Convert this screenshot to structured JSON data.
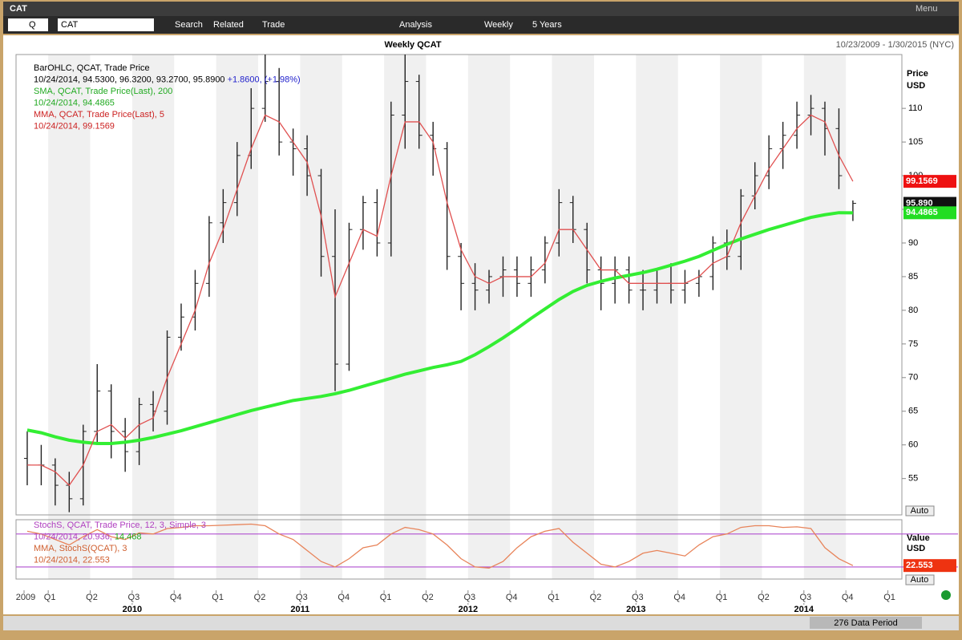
{
  "window_title": "CAT",
  "toolbar": {
    "symbol_type": "Q",
    "symbol": "CAT",
    "search": "Search",
    "related": "Related",
    "trade": "Trade",
    "analysis": "Analysis",
    "interval": "Weekly",
    "range": "5 Years",
    "menu": "Menu"
  },
  "footer": {
    "periods": "276 Data Period",
    "auto": "Auto"
  },
  "chart_data": [
    {
      "type": "ohlc",
      "title": "Weekly QCAT",
      "subtitle": "10/23/2009 - 1/30/2015 (NYC)",
      "axis_label": [
        "Price",
        "USD"
      ],
      "legend": [
        "BarOHLC, QCAT, Trade Price",
        "10/24/2014, 94.5300, 96.3200, 93.2700, 95.8900",
        "+1.8600, (+1.98%)",
        "SMA, QCAT, Trade Price(Last),  200",
        "10/24/2014, 94.4865",
        "MMA, QCAT, Trade Price(Last),  5",
        "10/24/2014, 99.1569"
      ],
      "xlim": [
        -0.8,
        62.5
      ],
      "xticks": [
        {
          "value": -1.5,
          "label": "2009"
        },
        {
          "value": 1.5,
          "label": "Q1"
        },
        {
          "value": 4.5,
          "label": "Q2"
        },
        {
          "value": 7.5,
          "label": "Q3"
        },
        {
          "value": 10.5,
          "label": "Q4"
        },
        {
          "value": 13.5,
          "label": "Q1"
        },
        {
          "value": 16.5,
          "label": "Q2"
        },
        {
          "value": 19.5,
          "label": "Q3"
        },
        {
          "value": 22.5,
          "label": "Q4"
        },
        {
          "value": 25.5,
          "label": "Q1"
        },
        {
          "value": 28.5,
          "label": "Q2"
        },
        {
          "value": 31.5,
          "label": "Q3"
        },
        {
          "value": 34.5,
          "label": "Q4"
        },
        {
          "value": 37.5,
          "label": "Q1"
        },
        {
          "value": 40.5,
          "label": "Q2"
        },
        {
          "value": 43.5,
          "label": "Q3"
        },
        {
          "value": 46.5,
          "label": "Q4"
        },
        {
          "value": 49.5,
          "label": "Q1"
        },
        {
          "value": 52.5,
          "label": "Q2"
        },
        {
          "value": 55.5,
          "label": "Q3"
        },
        {
          "value": 58.5,
          "label": "Q4"
        },
        {
          "value": 61.5,
          "label": "Q1"
        }
      ],
      "year_ticks": [
        {
          "value": 7.5,
          "label": "2010"
        },
        {
          "value": 19.5,
          "label": "2011"
        },
        {
          "value": 31.5,
          "label": "2012"
        },
        {
          "value": 43.5,
          "label": "2013"
        },
        {
          "value": 55.5,
          "label": "2014"
        }
      ],
      "ylim": [
        49.6,
        118
      ],
      "yticks": [
        55,
        60,
        65,
        70,
        75,
        80,
        85,
        90,
        95,
        100,
        105,
        110
      ],
      "open": [
        58,
        57,
        57,
        54,
        52,
        62,
        68,
        62,
        59,
        66,
        65,
        76,
        79,
        84,
        93,
        96,
        103,
        110,
        114,
        105,
        104,
        100,
        88,
        72,
        92,
        96,
        90,
        109,
        114,
        106,
        104,
        88,
        84,
        83,
        85,
        86,
        84,
        86,
        90,
        96,
        92,
        86,
        84,
        86,
        83,
        83,
        84,
        83,
        84,
        85,
        90,
        88,
        97,
        100,
        104,
        106,
        109,
        110,
        107,
        94.53
      ],
      "high": [
        62,
        60,
        58,
        56,
        63,
        72,
        69,
        64,
        67,
        68,
        77,
        81,
        86,
        94,
        98,
        105,
        113,
        118,
        116,
        107,
        106,
        101,
        95,
        93,
        97,
        98,
        111,
        118,
        115,
        108,
        105,
        90,
        87,
        86,
        88,
        88,
        88,
        91,
        98,
        97,
        93,
        88,
        88,
        88,
        86,
        86,
        87,
        86,
        86,
        91,
        92,
        98,
        102,
        106,
        108,
        111,
        112,
        111,
        110,
        96.32
      ],
      "low": [
        54,
        54,
        51,
        50,
        51,
        60,
        58,
        56,
        57,
        62,
        63,
        74,
        77,
        82,
        90,
        94,
        101,
        108,
        103,
        100,
        97,
        85,
        68,
        71,
        89,
        88,
        88,
        104,
        104,
        100,
        86,
        80,
        80,
        81,
        82,
        82,
        82,
        84,
        88,
        90,
        84,
        80,
        81,
        81,
        80,
        81,
        81,
        81,
        82,
        83,
        86,
        86,
        95,
        98,
        101,
        104,
        106,
        103,
        98,
        93.27
      ],
      "close": [
        57,
        57,
        54,
        52,
        62,
        68,
        62,
        59,
        66,
        65,
        76,
        79,
        84,
        93,
        96,
        103,
        110,
        114,
        105,
        104,
        100,
        88,
        72,
        92,
        96,
        90,
        109,
        114,
        106,
        104,
        88,
        84,
        83,
        85,
        86,
        84,
        86,
        90,
        96,
        92,
        86,
        84,
        86,
        83,
        83,
        84,
        83,
        84,
        85,
        90,
        88,
        97,
        100,
        104,
        106,
        109,
        110,
        107,
        100,
        95.89
      ],
      "color": "#222222",
      "series": [
        {
          "name": "SMA",
          "color": "#33ee33",
          "width": 4,
          "values": [
            62.2,
            61.8,
            61.2,
            60.7,
            60.4,
            60.2,
            60.2,
            60.4,
            60.7,
            61.1,
            61.6,
            62.1,
            62.7,
            63.3,
            63.9,
            64.5,
            65.1,
            65.6,
            66.1,
            66.6,
            66.9,
            67.2,
            67.6,
            68.1,
            68.7,
            69.3,
            69.9,
            70.5,
            71,
            71.5,
            71.9,
            72.4,
            73.4,
            74.6,
            75.9,
            77.3,
            78.8,
            80.2,
            81.6,
            82.8,
            83.7,
            84.3,
            84.8,
            85.2,
            85.6,
            86.1,
            86.7,
            87.3,
            88,
            88.9,
            89.8,
            90.6,
            91.3,
            92,
            92.6,
            93.2,
            93.8,
            94.2,
            94.5,
            94.4865
          ]
        },
        {
          "name": "MMA",
          "color": "#e05050",
          "width": 1.3,
          "values": [
            57,
            57,
            56,
            54,
            57,
            62,
            63,
            61,
            63,
            64,
            70,
            75,
            80,
            87,
            92,
            98,
            104,
            109,
            108,
            105,
            102,
            94,
            82,
            87,
            92,
            91,
            100,
            108,
            108,
            105,
            96,
            89,
            85,
            84,
            85,
            85,
            85,
            87,
            92,
            92,
            89,
            86,
            86,
            84,
            84,
            84,
            84,
            84,
            85,
            87,
            88,
            93,
            97,
            101,
            104,
            107,
            109,
            108,
            103,
            99.1569
          ]
        }
      ],
      "price_tags": [
        {
          "value": 99.1569,
          "label": "99.1569",
          "color": "#ee1111"
        },
        {
          "value": 95.89,
          "label": "95.890",
          "color": "#111111"
        },
        {
          "value": 94.4865,
          "label": "94.4865",
          "color": "#22dd22"
        }
      ]
    },
    {
      "type": "line",
      "axis_label": [
        "Value",
        "USD"
      ],
      "legend": [
        "StochS, QCAT, Trade Price,  12, 3, Simple, 3",
        "10/24/2014, 20.936,",
        "14.468",
        "MMA, StochS(QCAT),  3",
        "10/24/2014, 22.553"
      ],
      "xlim": [
        -0.8,
        62.5
      ],
      "ylim": [
        -2,
        106
      ],
      "hlines": [
        80,
        20
      ],
      "hline_color": "#b050d0",
      "series": [
        {
          "name": "MMA",
          "color": "#e8845a",
          "width": 1.3,
          "values": [
            85,
            80,
            70,
            60,
            75,
            88,
            75,
            70,
            82,
            80,
            90,
            92,
            95,
            95,
            96,
            97,
            98,
            95,
            80,
            70,
            50,
            30,
            20,
            35,
            55,
            60,
            80,
            92,
            88,
            80,
            60,
            35,
            20,
            18,
            30,
            55,
            75,
            85,
            90,
            65,
            45,
            25,
            20,
            30,
            45,
            50,
            45,
            40,
            60,
            75,
            80,
            92,
            95,
            95,
            92,
            93,
            90,
            55,
            35,
            22.553
          ]
        }
      ],
      "price_tags": [
        {
          "value": 22.553,
          "label": "22.553",
          "color": "#ee3311"
        }
      ]
    }
  ]
}
